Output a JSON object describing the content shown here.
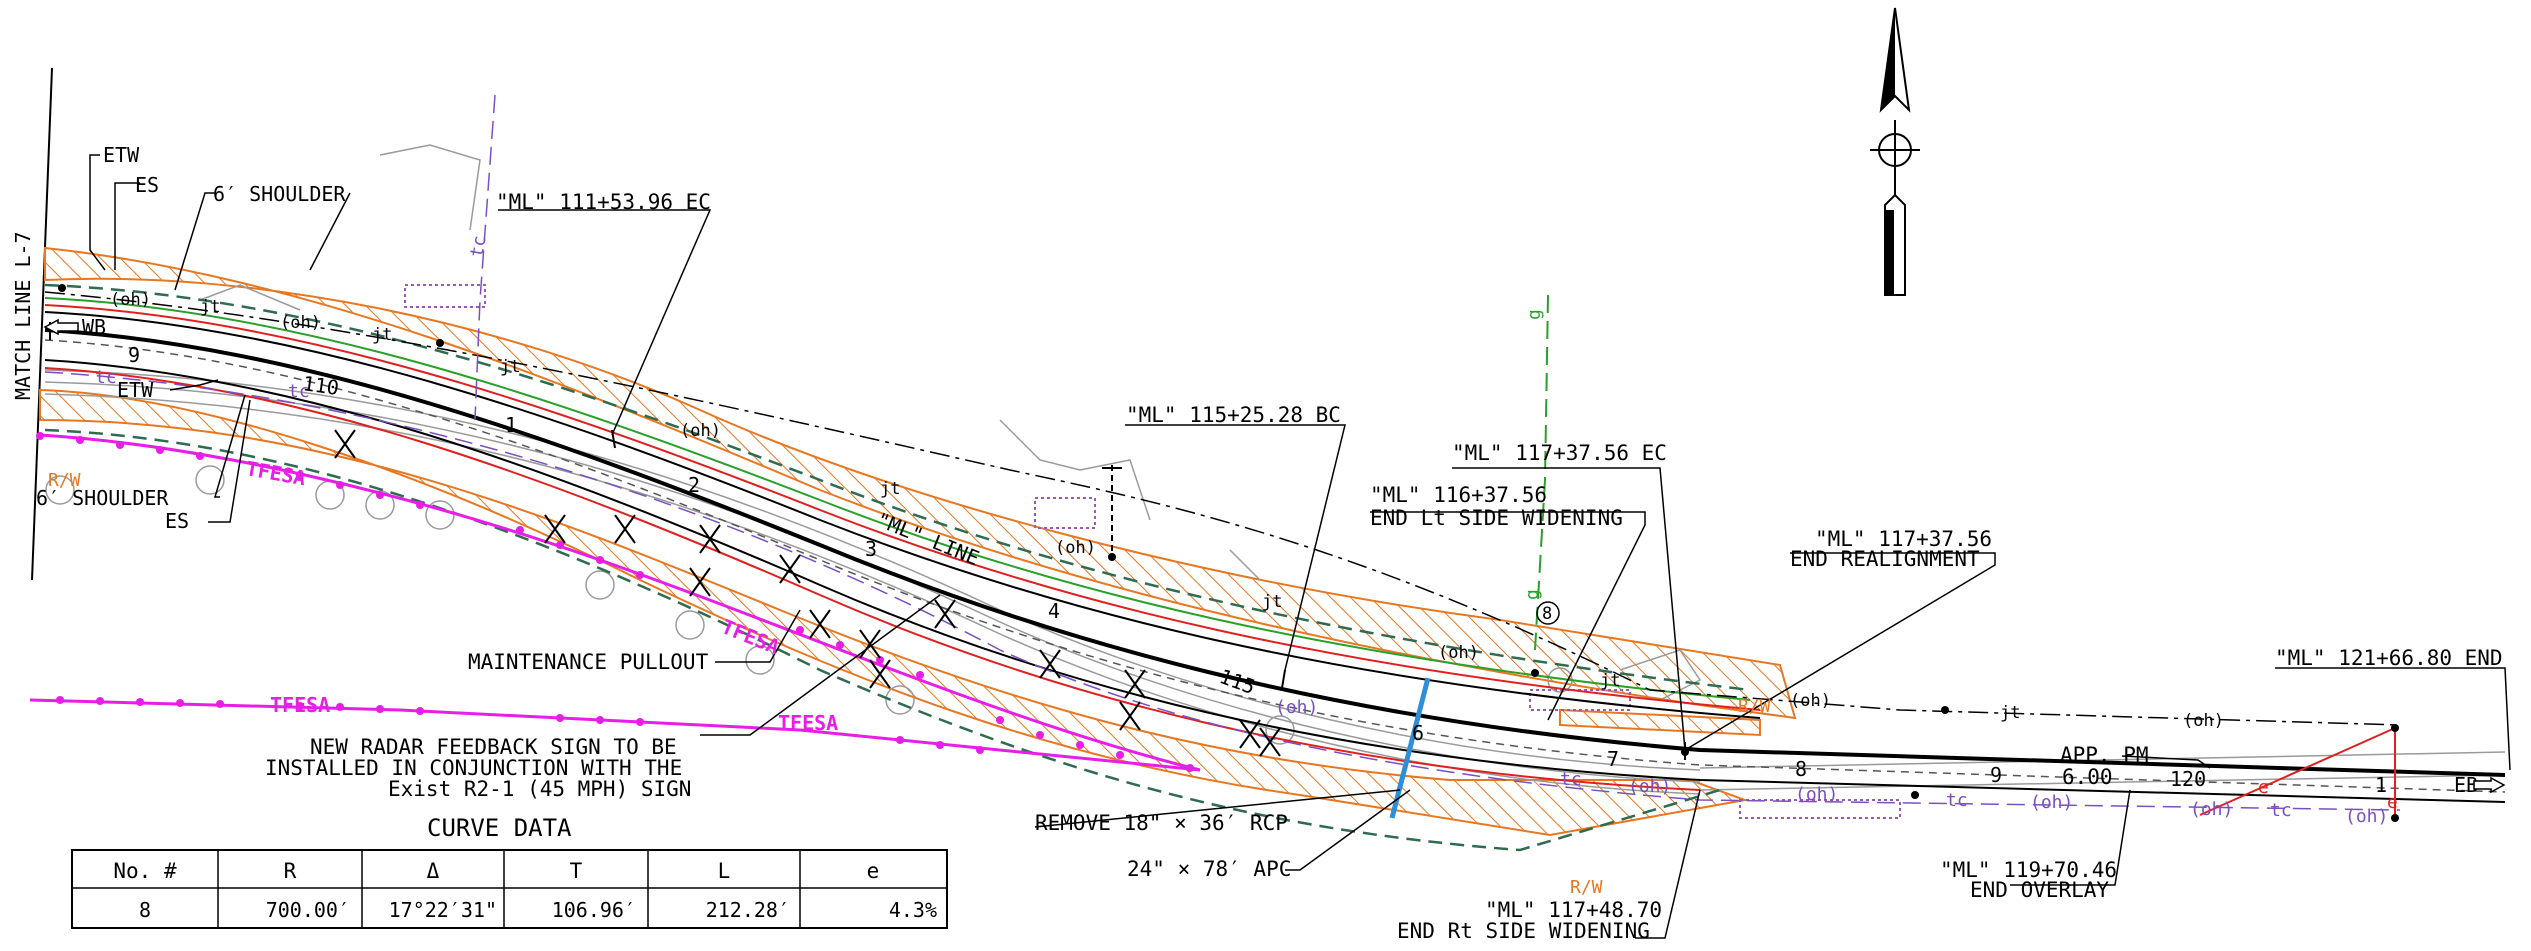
{
  "match_line": "MATCH LINE L-7",
  "callouts": {
    "etw_top": "ETW",
    "es_top": "ES",
    "shoulder_top": "6′ SHOULDER",
    "etw_left": "ETW",
    "shoulder_left": "6′ SHOULDER",
    "es_left": "ES",
    "ml_111": "\"ML\" 111+53.96 EC",
    "ml_115": "\"ML\" 115+25.28 BC",
    "ml_117_ec": "\"ML\" 117+37.56 EC",
    "ml_116_1": "\"ML\" 116+37.56",
    "ml_116_2": "END Lt SIDE WIDENING",
    "ml_117r_1": "\"ML\" 117+37.56",
    "ml_117r_2": "END REALIGNMENT",
    "ml_121": "\"ML\" 121+66.80 END",
    "maintenance": "MAINTENANCE PULLOUT",
    "radar_1": "NEW RADAR FEEDBACK SIGN TO BE",
    "radar_2": "INSTALLED IN CONJUNCTION WITH THE",
    "radar_3": "Exist R2-1 (45 MPH) SIGN",
    "remove_rcp": "REMOVE 18\" × 36′ RCP",
    "apc": "24\" × 78′ APC",
    "ml_11748_1": "\"ML\" 117+48.70",
    "ml_11748_2": "END Rt SIDE WIDENING",
    "ml_119_1": "\"ML\" 119+70.46",
    "ml_119_2": "END OVERLAY",
    "app_pm": "APP. PM",
    "app_val": "6.00"
  },
  "labels": {
    "wb": "WB",
    "eb": "EB",
    "ml_line": "\"ML\" LINE",
    "sta_110": "110",
    "sta_115": "115",
    "sta_120": "120",
    "n9_left": "9",
    "n1": "1",
    "n2": "2",
    "n3": "3",
    "n4": "4",
    "n5": "5",
    "n6": "6",
    "n7": "7",
    "n8": "8",
    "n9_right": "9",
    "n1_right": "1",
    "circle8": "8",
    "oh": "(oh)",
    "jt": "jt",
    "tc": "tc",
    "g": "g",
    "e": "e",
    "tfesa": "TFESA",
    "rw": "R/W"
  },
  "curve_data": {
    "title": "CURVE DATA",
    "headers": [
      "No. #",
      "R",
      "Δ",
      "T",
      "L",
      "e"
    ],
    "row": [
      "8",
      "700.00′",
      "17°22′31\"",
      "106.96′",
      "212.28′",
      "4.3%"
    ]
  },
  "colors": {
    "hatch": "#e87722",
    "tfesa": "#e81ee8",
    "edge_red": "#e02020",
    "green": "#2aa02a",
    "dashgreen": "#2f6b4f",
    "purple": "#7a4fc0",
    "culvert": "#2e8fd6"
  }
}
